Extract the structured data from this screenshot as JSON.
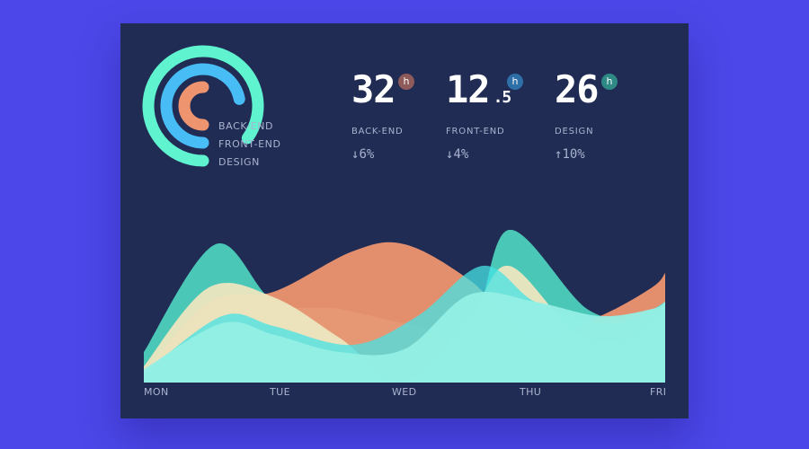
{
  "colors": {
    "background": "#4b47e8",
    "card": "#202c54",
    "back_end": "#ee9570",
    "front_end": "#48bdf5",
    "design": "#5ff3d0",
    "badge_back_end": "#8f5a5a",
    "badge_front_end": "#2f6fa8",
    "badge_design": "#2f8a86"
  },
  "legend": [
    "BACK-END",
    "FRONT-END",
    "DESIGN"
  ],
  "stats": [
    {
      "value": "32",
      "decimal": "",
      "unit": "h",
      "label": "BACK-END",
      "arrow": "↓",
      "change": "6%"
    },
    {
      "value": "12",
      "decimal": ".5",
      "unit": "h",
      "label": "FRONT-END",
      "arrow": "↓",
      "change": "4%"
    },
    {
      "value": "26",
      "decimal": "",
      "unit": "h",
      "label": "DESIGN",
      "arrow": "↑",
      "change": "10%"
    }
  ],
  "chart_data": {
    "type": "area",
    "categories": [
      "MON",
      "TUE",
      "WED",
      "THU",
      "FRI"
    ],
    "ring_levels": {
      "back_end": 0.5,
      "front_end": 0.72,
      "design": 0.85
    },
    "series": [
      {
        "key": "design",
        "color": "#4fd8c2",
        "opacity": 0.9,
        "points": [
          [
            0,
            0.2
          ],
          [
            0.55,
            0.95
          ],
          [
            1,
            0.55
          ],
          [
            1.5,
            0.5
          ],
          [
            2,
            0.4
          ],
          [
            2.5,
            0.35
          ],
          [
            2.8,
            1.05
          ],
          [
            3.4,
            0.5
          ],
          [
            3.8,
            0.45
          ],
          [
            4,
            0.55
          ]
        ]
      },
      {
        "key": "back_end",
        "color": "#ee9570",
        "opacity": 0.95,
        "points": [
          [
            0,
            0.05
          ],
          [
            0.5,
            0.55
          ],
          [
            1,
            0.62
          ],
          [
            1.6,
            0.9
          ],
          [
            2,
            0.95
          ],
          [
            2.5,
            0.7
          ],
          [
            3,
            0.3
          ],
          [
            3.5,
            0.45
          ],
          [
            3.9,
            0.65
          ],
          [
            4,
            0.75
          ]
        ]
      },
      {
        "key": "cream",
        "color": "#ece6bf",
        "opacity": 0.95,
        "points": [
          [
            0,
            0.1
          ],
          [
            0.5,
            0.65
          ],
          [
            1,
            0.58
          ],
          [
            1.5,
            0.3
          ],
          [
            2,
            0.0
          ],
          [
            2.5,
            0.45
          ],
          [
            2.8,
            0.8
          ],
          [
            3.3,
            0.35
          ],
          [
            3.7,
            0.3
          ],
          [
            4,
            0.55
          ]
        ]
      },
      {
        "key": "front_end",
        "color": "#45e3e6",
        "opacity": 0.75,
        "points": [
          [
            0,
            0.05
          ],
          [
            0.6,
            0.45
          ],
          [
            1,
            0.38
          ],
          [
            1.6,
            0.25
          ],
          [
            2.1,
            0.45
          ],
          [
            2.6,
            0.8
          ],
          [
            3,
            0.55
          ],
          [
            3.5,
            0.4
          ],
          [
            3.8,
            0.45
          ],
          [
            4,
            0.55
          ]
        ]
      },
      {
        "key": "base",
        "color": "#93efe5",
        "opacity": 0.95,
        "points": [
          [
            0,
            0.08
          ],
          [
            0.6,
            0.4
          ],
          [
            1,
            0.32
          ],
          [
            1.5,
            0.2
          ],
          [
            2,
            0.22
          ],
          [
            2.5,
            0.6
          ],
          [
            3,
            0.55
          ],
          [
            3.5,
            0.45
          ],
          [
            3.9,
            0.5
          ],
          [
            4,
            0.55
          ]
        ]
      }
    ]
  }
}
